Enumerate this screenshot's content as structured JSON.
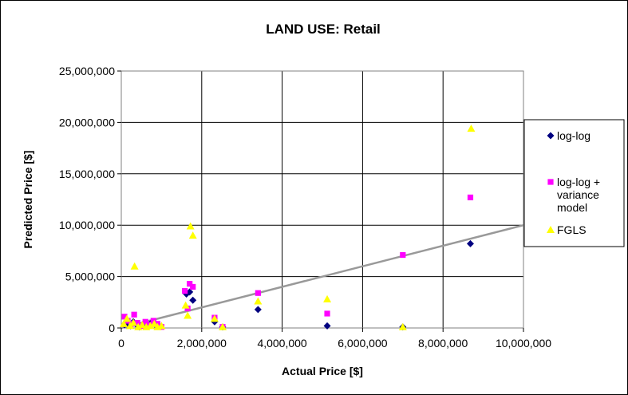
{
  "chart_data": {
    "type": "scatter",
    "title": "LAND USE: Retail",
    "xlabel": "Actual Price [$]",
    "ylabel": "Predicted Price [$]",
    "xlim": [
      0,
      10000000
    ],
    "ylim": [
      0,
      25000000
    ],
    "x_ticks": [
      0,
      2000000,
      4000000,
      6000000,
      8000000,
      10000000
    ],
    "x_tick_labels": [
      "0",
      "2,000,000",
      "4,000,000",
      "6,000,000",
      "8,000,000",
      "10,000,000"
    ],
    "y_ticks": [
      0,
      5000000,
      10000000,
      15000000,
      20000000,
      25000000
    ],
    "y_tick_labels": [
      "0",
      "5,000,000",
      "10,000,000",
      "15,000,000",
      "20,000,000",
      "25,000,000"
    ],
    "grid": true,
    "legend_position": "right",
    "reference_line": {
      "x": [
        0,
        10000000
      ],
      "y": [
        0,
        10000000
      ],
      "color": "#999999"
    },
    "series": [
      {
        "name": "log-log",
        "marker": "diamond",
        "color": "#000080",
        "points": [
          [
            80000,
            300000
          ],
          [
            150000,
            500000
          ],
          [
            230000,
            200000
          ],
          [
            300000,
            600000
          ],
          [
            380000,
            300000
          ],
          [
            450000,
            100000
          ],
          [
            550000,
            400000
          ],
          [
            650000,
            200000
          ],
          [
            750000,
            500000
          ],
          [
            850000,
            300000
          ],
          [
            950000,
            150000
          ],
          [
            1620000,
            3300000
          ],
          [
            1700000,
            3500000
          ],
          [
            1780000,
            2700000
          ],
          [
            2320000,
            600000
          ],
          [
            2520000,
            100000
          ],
          [
            3400000,
            1800000
          ],
          [
            5120000,
            200000
          ],
          [
            7000000,
            100000
          ],
          [
            8680000,
            8200000
          ]
        ]
      },
      {
        "name": "log-log + variance model",
        "marker": "square",
        "color": "#ff00ff",
        "points": [
          [
            80000,
            1100000
          ],
          [
            160000,
            700000
          ],
          [
            250000,
            400000
          ],
          [
            320000,
            1300000
          ],
          [
            400000,
            500000
          ],
          [
            500000,
            200000
          ],
          [
            600000,
            600000
          ],
          [
            700000,
            300000
          ],
          [
            800000,
            700000
          ],
          [
            900000,
            400000
          ],
          [
            1000000,
            100000
          ],
          [
            1580000,
            3600000
          ],
          [
            1650000,
            1900000
          ],
          [
            1700000,
            4300000
          ],
          [
            1780000,
            4000000
          ],
          [
            2320000,
            1000000
          ],
          [
            2520000,
            100000
          ],
          [
            3400000,
            3400000
          ],
          [
            5120000,
            1400000
          ],
          [
            7000000,
            7100000
          ],
          [
            8680000,
            12700000
          ]
        ]
      },
      {
        "name": "FGLS",
        "marker": "triangle",
        "color": "#ffff00",
        "points": [
          [
            60000,
            400000
          ],
          [
            140000,
            900000
          ],
          [
            220000,
            200000
          ],
          [
            300000,
            500000
          ],
          [
            330000,
            6000000
          ],
          [
            420000,
            100000
          ],
          [
            520000,
            300000
          ],
          [
            620000,
            100000
          ],
          [
            720000,
            200000
          ],
          [
            820000,
            400000
          ],
          [
            900000,
            100000
          ],
          [
            1000000,
            200000
          ],
          [
            1600000,
            2200000
          ],
          [
            1650000,
            1200000
          ],
          [
            1720000,
            9900000
          ],
          [
            1780000,
            9000000
          ],
          [
            2320000,
            900000
          ],
          [
            2520000,
            100000
          ],
          [
            3400000,
            2600000
          ],
          [
            5120000,
            2800000
          ],
          [
            7000000,
            100000
          ],
          [
            8700000,
            19400000
          ]
        ]
      }
    ]
  }
}
